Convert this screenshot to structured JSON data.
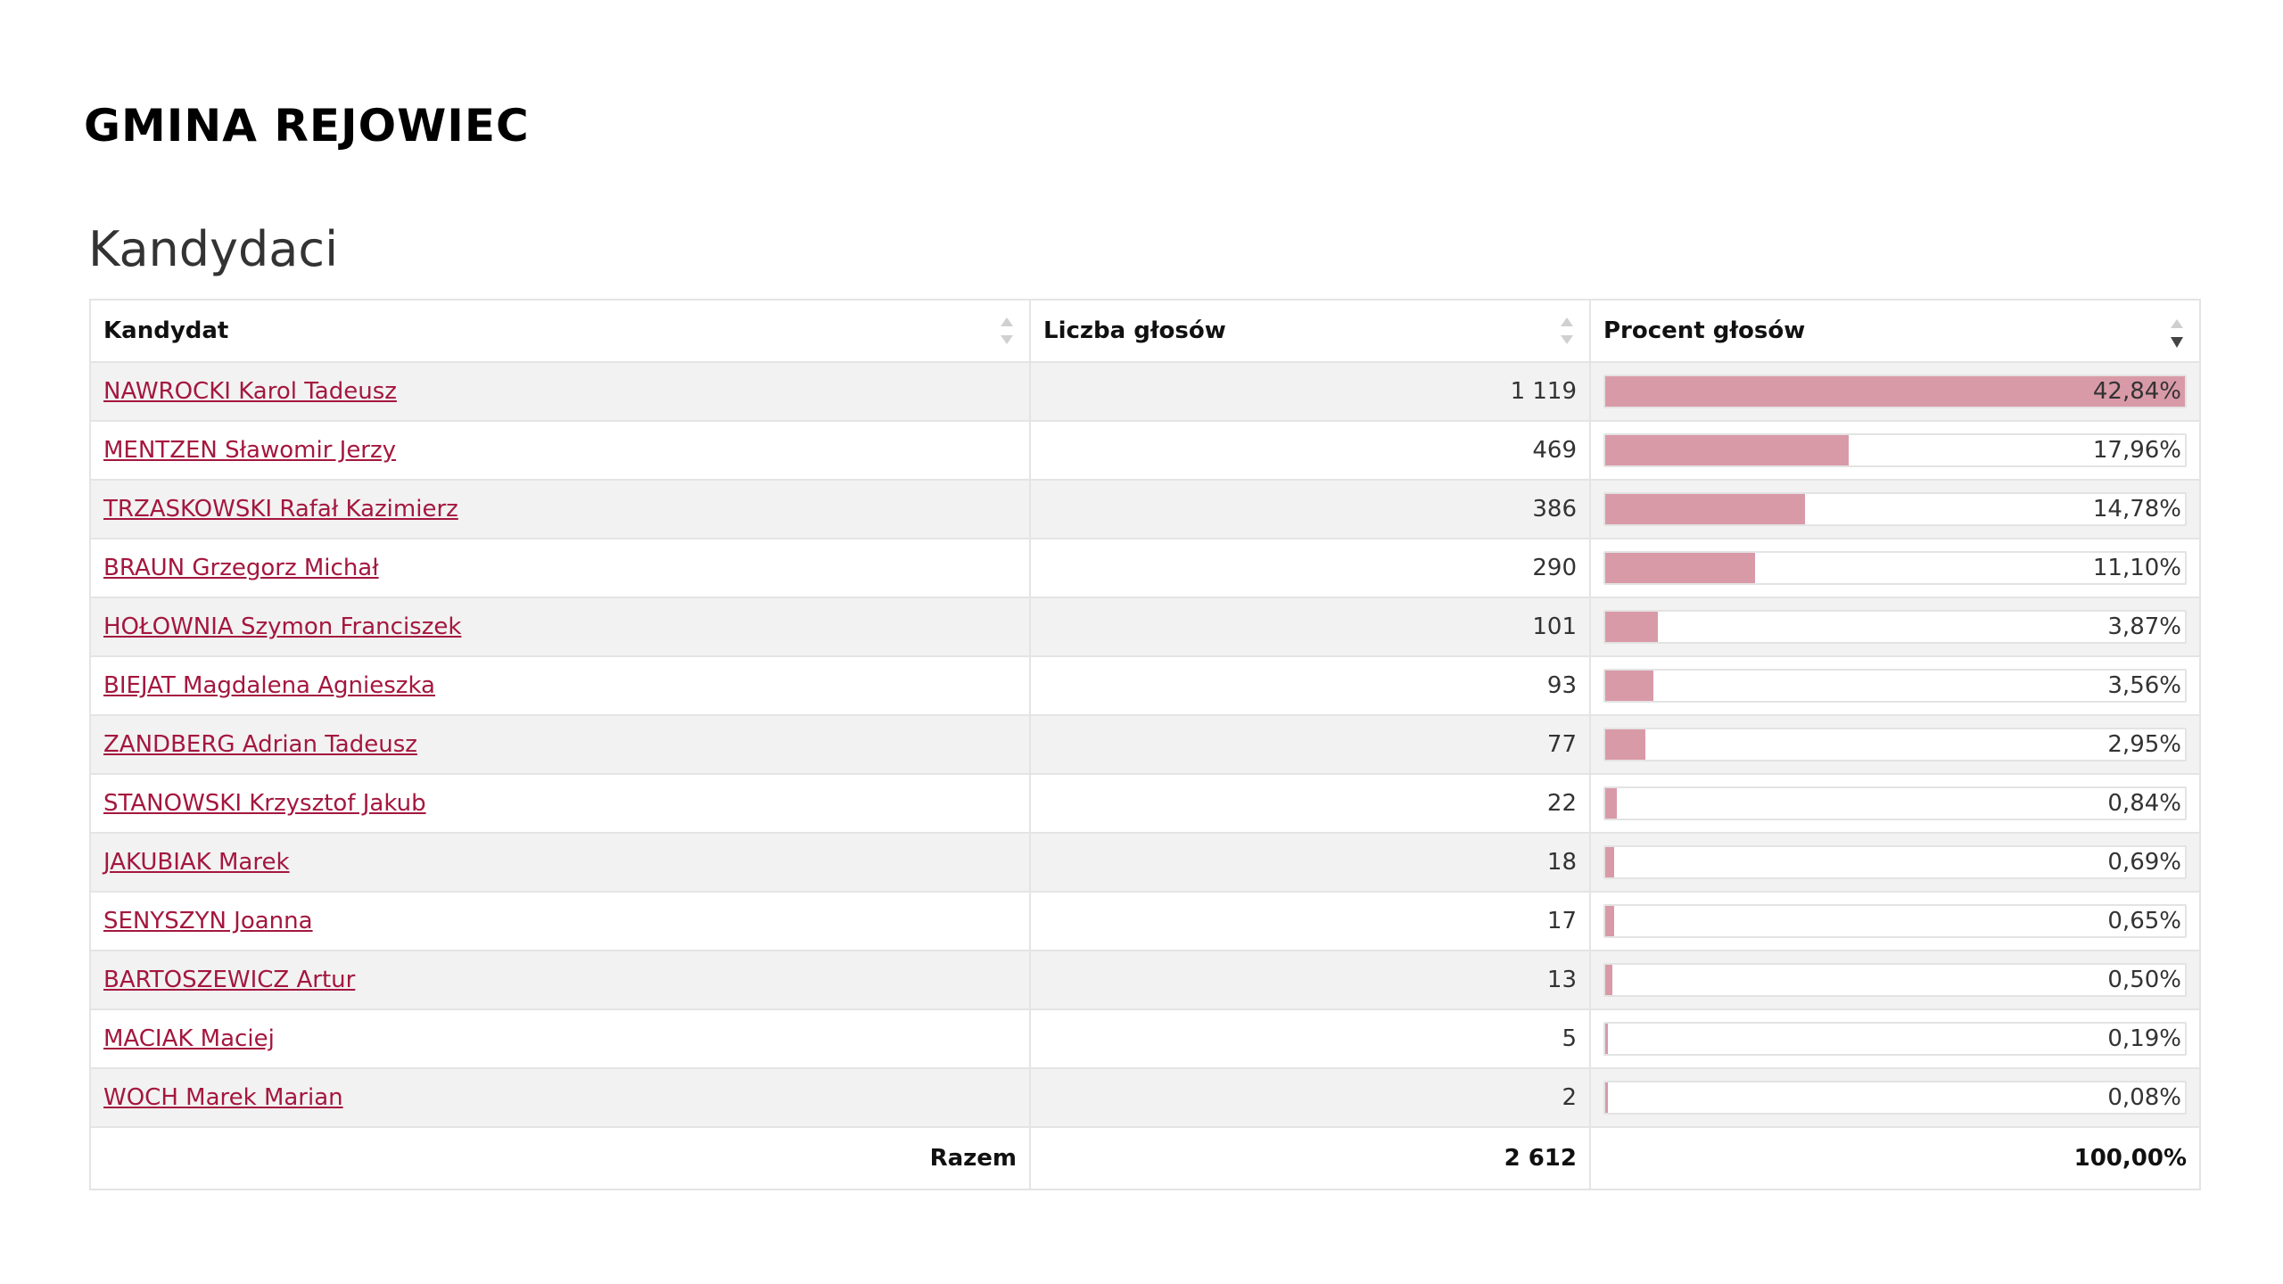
{
  "page": {
    "title": "GMINA REJOWIEC",
    "section_title": "Kandydaci"
  },
  "table": {
    "headers": {
      "candidate": "Kandydat",
      "votes": "Liczba głosów",
      "percent": "Procent głosów"
    },
    "sorted_by": "percent",
    "sort_direction": "descending",
    "bar_color": "#d99aa8",
    "link_color": "#a4173e",
    "rows": [
      {
        "name": "NAWROCKI Karol Tadeusz",
        "votes": "1 119",
        "percent": "42,84%",
        "share": 42.84
      },
      {
        "name": "MENTZEN Sławomir Jerzy",
        "votes": "469",
        "percent": "17,96%",
        "share": 17.96
      },
      {
        "name": "TRZASKOWSKI Rafał Kazimierz",
        "votes": "386",
        "percent": "14,78%",
        "share": 14.78
      },
      {
        "name": "BRAUN Grzegorz Michał",
        "votes": "290",
        "percent": "11,10%",
        "share": 11.1
      },
      {
        "name": "HOŁOWNIA Szymon Franciszek",
        "votes": "101",
        "percent": "3,87%",
        "share": 3.87
      },
      {
        "name": "BIEJAT Magdalena Agnieszka",
        "votes": "93",
        "percent": "3,56%",
        "share": 3.56
      },
      {
        "name": "ZANDBERG Adrian Tadeusz",
        "votes": "77",
        "percent": "2,95%",
        "share": 2.95
      },
      {
        "name": "STANOWSKI Krzysztof Jakub",
        "votes": "22",
        "percent": "0,84%",
        "share": 0.84
      },
      {
        "name": "JAKUBIAK Marek",
        "votes": "18",
        "percent": "0,69%",
        "share": 0.69
      },
      {
        "name": "SENYSZYN Joanna",
        "votes": "17",
        "percent": "0,65%",
        "share": 0.65
      },
      {
        "name": "BARTOSZEWICZ Artur",
        "votes": "13",
        "percent": "0,50%",
        "share": 0.5
      },
      {
        "name": "MACIAK Maciej",
        "votes": "5",
        "percent": "0,19%",
        "share": 0.19
      },
      {
        "name": "WOCH Marek Marian",
        "votes": "2",
        "percent": "0,08%",
        "share": 0.08
      }
    ],
    "footer": {
      "label": "Razem",
      "votes": "2 612",
      "percent": "100,00%"
    }
  }
}
